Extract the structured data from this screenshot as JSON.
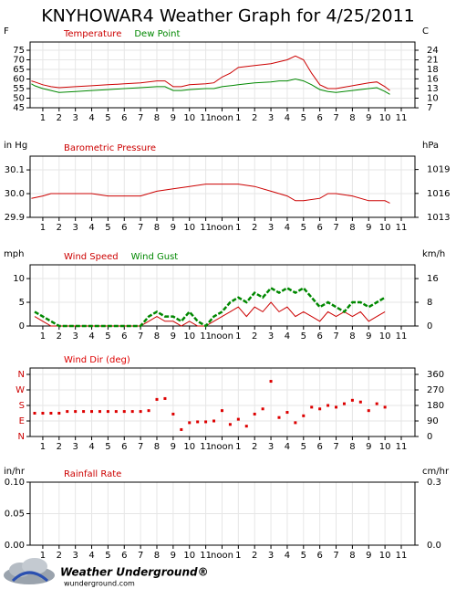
{
  "title": "KNYHOWAR4 Weather Graph for 4/25/2011",
  "footer": {
    "brand": "Weather Underground®",
    "url": "wunderground.com"
  },
  "chart_data": [
    {
      "type": "line",
      "y_label": "F",
      "y2_label": "C",
      "grid": true,
      "xlim": [
        0.22,
        23.84
      ],
      "xticks": [
        1,
        2,
        3,
        4,
        5,
        6,
        7,
        8,
        9,
        10,
        11,
        {
          "value": 12,
          "label": "noon"
        },
        {
          "value": 13,
          "label": "1"
        },
        {
          "value": 14,
          "label": "2"
        },
        {
          "value": 15,
          "label": "3"
        },
        {
          "value": 16,
          "label": "4"
        },
        {
          "value": 17,
          "label": "5"
        },
        {
          "value": 18,
          "label": "6"
        },
        {
          "value": 19,
          "label": "7"
        },
        {
          "value": 20,
          "label": "8"
        },
        {
          "value": 21,
          "label": "9"
        },
        {
          "value": 22,
          "label": "10"
        },
        {
          "value": 23,
          "label": "11"
        }
      ],
      "ylim": [
        45,
        79.3
      ],
      "yticks": [
        45,
        50,
        55,
        60,
        65,
        70,
        75
      ],
      "y2lim": [
        7.22,
        26.28
      ],
      "y2ticks": [
        {
          "value": 7.2,
          "label": "7"
        },
        10,
        {
          "value": 12.8,
          "label": "13"
        },
        {
          "value": 15.6,
          "label": "16"
        },
        {
          "value": 18.3,
          "label": "18"
        },
        {
          "value": 21.1,
          "label": "21"
        },
        {
          "value": 23.9,
          "label": "24"
        }
      ],
      "x": [
        0.3,
        0.5,
        1,
        1.5,
        2,
        3,
        4,
        5,
        6,
        7,
        8,
        8.5,
        9,
        9.5,
        10,
        11,
        11.5,
        12,
        12.5,
        13,
        14,
        15,
        15.5,
        16,
        16.5,
        17,
        17.5,
        18,
        18.5,
        19,
        20,
        21,
        21.5,
        22,
        22.3
      ],
      "series": [
        {
          "name": "Temperature",
          "color": "#cc0000",
          "values": [
            59,
            58.5,
            57,
            56,
            55.5,
            56,
            56.5,
            57,
            57.5,
            58,
            59,
            59,
            56,
            56,
            57,
            57.5,
            58,
            61,
            63,
            66,
            67,
            68,
            69,
            70,
            72,
            70,
            63,
            57,
            55,
            55,
            56.5,
            58,
            58.5,
            56,
            54
          ]
        },
        {
          "name": "Dew Point",
          "color": "#008800",
          "values": [
            57.5,
            56.5,
            55,
            54,
            53,
            53.5,
            54,
            54.5,
            55,
            55.5,
            56,
            56,
            54,
            54,
            54.5,
            55,
            55,
            56,
            56.5,
            57,
            58,
            58.5,
            59,
            59,
            60,
            59,
            57,
            54.5,
            53.5,
            53,
            54,
            55,
            55.5,
            53.5,
            52
          ]
        }
      ]
    },
    {
      "type": "line",
      "y_label": "in Hg",
      "y2_label": "hPa",
      "grid": true,
      "xlim": [
        0.22,
        23.84
      ],
      "xticks": [
        1,
        2,
        3,
        4,
        5,
        6,
        7,
        8,
        9,
        10,
        11,
        {
          "value": 12,
          "label": "noon"
        },
        {
          "value": 13,
          "label": "1"
        },
        {
          "value": 14,
          "label": "2"
        },
        {
          "value": 15,
          "label": "3"
        },
        {
          "value": 16,
          "label": "4"
        },
        {
          "value": 17,
          "label": "5"
        },
        {
          "value": 18,
          "label": "6"
        },
        {
          "value": 19,
          "label": "7"
        },
        {
          "value": 20,
          "label": "8"
        },
        {
          "value": 21,
          "label": "9"
        },
        {
          "value": 22,
          "label": "10"
        },
        {
          "value": 23,
          "label": "11"
        }
      ],
      "ylim": [
        29.9,
        30.158
      ],
      "yticks": [
        29.9,
        {
          "value": 30,
          "label": "30.0"
        },
        30.1
      ],
      "y2lim": [
        1012.5,
        1021.2
      ],
      "y2ticks": [
        {
          "value": 1012.5,
          "label": "1013"
        },
        {
          "value": 1015.9,
          "label": "1016"
        },
        {
          "value": 1019.3,
          "label": "1019"
        }
      ],
      "x": [
        0.3,
        1,
        1.5,
        2,
        3,
        4,
        5,
        6,
        7,
        8,
        9,
        10,
        11,
        12,
        13,
        14,
        15,
        16,
        16.5,
        17,
        18,
        18.5,
        19,
        20,
        21,
        22,
        22.3
      ],
      "series": [
        {
          "name": "Barometric Pressure",
          "color": "#cc0000",
          "values": [
            29.98,
            29.99,
            30.0,
            30.0,
            30.0,
            30.0,
            29.99,
            29.99,
            29.99,
            30.01,
            30.02,
            30.03,
            30.04,
            30.04,
            30.04,
            30.03,
            30.01,
            29.99,
            29.97,
            29.97,
            29.98,
            30.0,
            30.0,
            29.99,
            29.97,
            29.97,
            29.96
          ]
        }
      ]
    },
    {
      "type": "line",
      "y_label": "mph",
      "y2_label": "km/h",
      "grid": true,
      "xlim": [
        0.22,
        23.84
      ],
      "xticks": [
        1,
        2,
        3,
        4,
        5,
        6,
        7,
        8,
        9,
        10,
        11,
        {
          "value": 12,
          "label": "noon"
        },
        {
          "value": 13,
          "label": "1"
        },
        {
          "value": 14,
          "label": "2"
        },
        {
          "value": 15,
          "label": "3"
        },
        {
          "value": 16,
          "label": "4"
        },
        {
          "value": 17,
          "label": "5"
        },
        {
          "value": 18,
          "label": "6"
        },
        {
          "value": 19,
          "label": "7"
        },
        {
          "value": 20,
          "label": "8"
        },
        {
          "value": 21,
          "label": "9"
        },
        {
          "value": 22,
          "label": "10"
        },
        {
          "value": 23,
          "label": "11"
        }
      ],
      "ylim": [
        0,
        12.9
      ],
      "yticks": [
        0,
        5,
        10
      ],
      "y2lim": [
        0,
        20.76
      ],
      "y2ticks": [
        0,
        {
          "value": 8.05,
          "label": "8"
        },
        {
          "value": 16.09,
          "label": "16"
        }
      ],
      "x": [
        0.5,
        1,
        1.5,
        2,
        2.5,
        3,
        3.5,
        4,
        4.5,
        5,
        5.5,
        6,
        6.5,
        7,
        7.5,
        8,
        8.5,
        9,
        9.5,
        10,
        10.5,
        11,
        11.5,
        12,
        12.5,
        13,
        13.5,
        14,
        14.5,
        15,
        15.5,
        16,
        16.5,
        17,
        17.5,
        18,
        18.5,
        19,
        19.5,
        20,
        20.5,
        21,
        21.5,
        22
      ],
      "series": [
        {
          "name": "Wind Speed",
          "color": "#cc0000",
          "values": [
            2,
            1,
            0,
            0,
            0,
            0,
            0,
            0,
            0,
            0,
            0,
            0,
            0,
            0,
            1,
            2,
            1,
            1,
            0,
            1,
            0,
            0,
            1,
            2,
            3,
            4,
            2,
            4,
            3,
            5,
            3,
            4,
            2,
            3,
            2,
            1,
            3,
            2,
            3,
            2,
            3,
            1,
            2,
            3
          ]
        },
        {
          "name": "Wind Gust",
          "color": "#008800",
          "values": [
            3,
            2,
            1,
            0,
            0,
            0,
            0,
            0,
            0,
            0,
            0,
            0,
            0,
            0,
            2,
            3,
            2,
            2,
            1,
            3,
            1,
            0,
            2,
            3,
            5,
            6,
            5,
            7,
            6,
            8,
            7,
            8,
            7,
            8,
            6,
            4,
            5,
            4,
            3,
            5,
            5,
            4,
            5,
            6
          ]
        }
      ]
    },
    {
      "type": "scatter",
      "y2_label": "",
      "grid": true,
      "ytick_color": "#cc0000",
      "xlim": [
        0.22,
        23.84
      ],
      "xticks": [
        1,
        2,
        3,
        4,
        5,
        6,
        7,
        8,
        9,
        10,
        11,
        {
          "value": 12,
          "label": "noon"
        },
        {
          "value": 13,
          "label": "1"
        },
        {
          "value": 14,
          "label": "2"
        },
        {
          "value": 15,
          "label": "3"
        },
        {
          "value": 16,
          "label": "4"
        },
        {
          "value": 17,
          "label": "5"
        },
        {
          "value": 18,
          "label": "6"
        },
        {
          "value": 19,
          "label": "7"
        },
        {
          "value": 20,
          "label": "8"
        },
        {
          "value": 21,
          "label": "9"
        },
        {
          "value": 22,
          "label": "10"
        },
        {
          "value": 23,
          "label": "11"
        }
      ],
      "ylim": [
        0,
        397
      ],
      "yticks": [
        {
          "value": 0,
          "label": "N"
        },
        {
          "value": 90,
          "label": "E"
        },
        {
          "value": 180,
          "label": "S"
        },
        {
          "value": 270,
          "label": "W"
        },
        {
          "value": 360,
          "label": "N"
        }
      ],
      "y2lim": [
        0,
        397
      ],
      "y2ticks": [
        0,
        90,
        180,
        270,
        360
      ],
      "x": [
        0.5,
        1,
        1.5,
        2,
        2.5,
        3,
        3.5,
        4,
        4.5,
        5,
        5.5,
        6,
        6.5,
        7,
        7.5,
        8,
        8.5,
        9,
        9.5,
        10,
        10.5,
        11,
        11.5,
        12,
        12.5,
        13,
        13.5,
        14,
        14.5,
        15,
        15.5,
        16,
        16.5,
        17,
        17.5,
        18,
        18.5,
        19,
        19.5,
        20,
        20.5,
        21,
        21.5,
        22
      ],
      "series": [
        {
          "name": "Wind Dir (deg)",
          "color": "#dd0000",
          "values": [
            135,
            135,
            135,
            135,
            145,
            145,
            145,
            145,
            145,
            145,
            145,
            145,
            145,
            145,
            150,
            215,
            220,
            130,
            40,
            80,
            85,
            85,
            90,
            150,
            70,
            100,
            60,
            130,
            160,
            320,
            110,
            140,
            80,
            120,
            170,
            160,
            180,
            170,
            190,
            210,
            200,
            150,
            190,
            170
          ]
        }
      ]
    },
    {
      "type": "line",
      "y_label": "in/hr",
      "y2_label": "cm/hr",
      "grid": true,
      "xlim": [
        0.22,
        23.84
      ],
      "xticks": [
        1,
        2,
        3,
        4,
        5,
        6,
        7,
        8,
        9,
        10,
        11,
        {
          "value": 12,
          "label": "noon"
        },
        {
          "value": 13,
          "label": "1"
        },
        {
          "value": 14,
          "label": "2"
        },
        {
          "value": 15,
          "label": "3"
        },
        {
          "value": 16,
          "label": "4"
        },
        {
          "value": 17,
          "label": "5"
        },
        {
          "value": 18,
          "label": "6"
        },
        {
          "value": 19,
          "label": "7"
        },
        {
          "value": 20,
          "label": "8"
        },
        {
          "value": 21,
          "label": "9"
        },
        {
          "value": 22,
          "label": "10"
        },
        {
          "value": 23,
          "label": "11"
        }
      ],
      "ylim": [
        0,
        0.1
      ],
      "yticks": [
        {
          "value": 0,
          "label": "0.00"
        },
        0.05,
        {
          "value": 0.1,
          "label": "0.10"
        }
      ],
      "y2lim": [
        0,
        0.254
      ],
      "y2ticks": [
        {
          "value": 0,
          "label": "0.0"
        },
        {
          "value": 0.254,
          "label": "0.3"
        }
      ],
      "x": [],
      "series": [
        {
          "name": "Rainfall Rate",
          "color": "#cc0000",
          "values": []
        }
      ]
    }
  ]
}
